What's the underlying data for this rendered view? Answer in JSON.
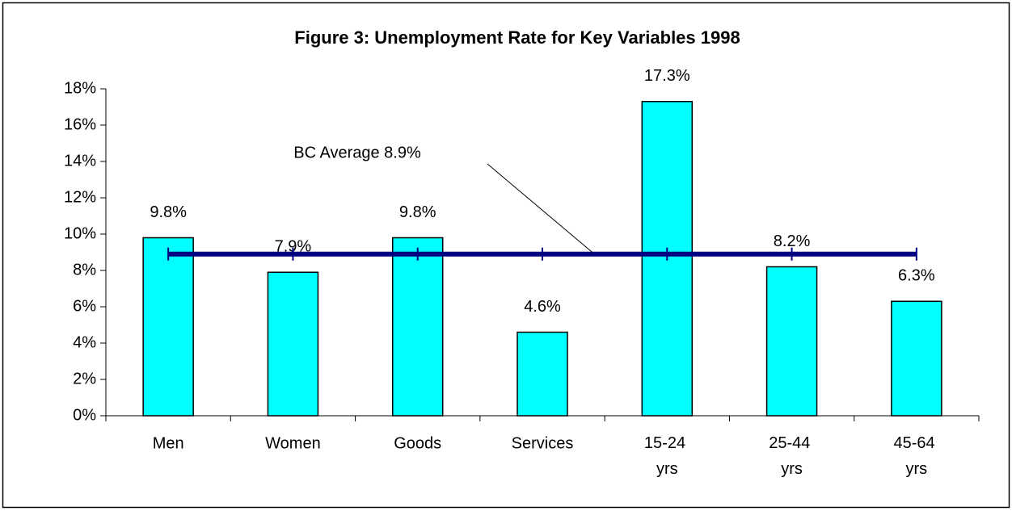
{
  "chart_data": {
    "type": "bar",
    "title": "Figure 3:  Unemployment Rate for Key Variables 1998",
    "categories": [
      "Men",
      "Women",
      "Goods",
      "Services",
      "15-24 yrs",
      "25-44 yrs",
      "45-64 yrs"
    ],
    "values": [
      9.8,
      7.9,
      9.8,
      4.6,
      17.3,
      8.2,
      6.3
    ],
    "value_labels": [
      "9.8%",
      "7.9%",
      "9.8%",
      "4.6%",
      "17.3%",
      "8.2%",
      "6.3%"
    ],
    "color": "#00ffff",
    "ylim": [
      0,
      18
    ],
    "yticks": [
      {
        "value": 0,
        "label": "0%"
      },
      {
        "value": 2,
        "label": "2%"
      },
      {
        "value": 4,
        "label": "4%"
      },
      {
        "value": 6,
        "label": "6%"
      },
      {
        "value": 8,
        "label": "8%"
      },
      {
        "value": 10,
        "label": "10%"
      },
      {
        "value": 12,
        "label": "12%"
      },
      {
        "value": 14,
        "label": "14%"
      },
      {
        "value": 16,
        "label": "16%"
      },
      {
        "value": 18,
        "label": "18%"
      }
    ],
    "grid": false,
    "average": {
      "value": 8.9,
      "label": "BC Average 8.9%",
      "color": "#000080"
    }
  }
}
